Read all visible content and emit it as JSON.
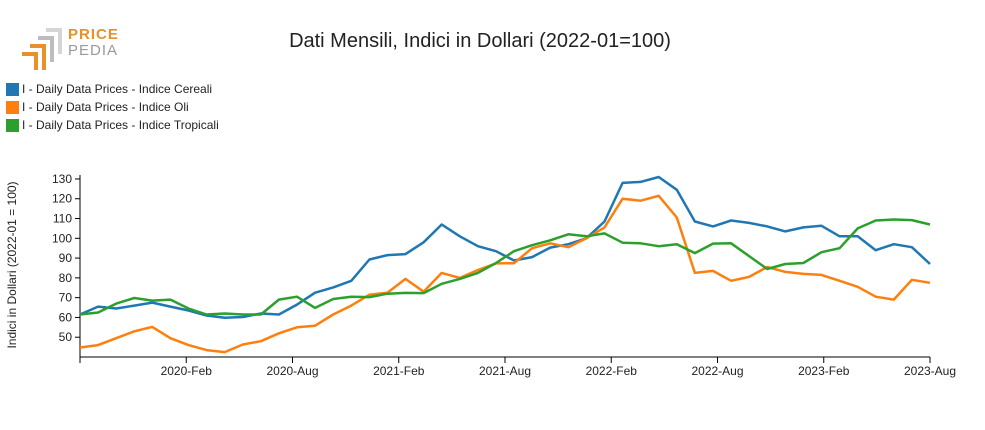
{
  "logo": {
    "line1": "PRICE",
    "line2": "PEDIA",
    "accent": "#e8912a",
    "gray": "#9a9a9a"
  },
  "chart_data": {
    "type": "line",
    "title": "Dati Mensili, Indici in Dollari (2022-01=100)",
    "xlabel": "",
    "ylabel": "Indici in Dollari (2022-01 = 100)",
    "ylim": [
      40,
      132
    ],
    "yticks": [
      50,
      60,
      70,
      80,
      90,
      100,
      110,
      120,
      130
    ],
    "x_start": "2019-08",
    "x_end": "2023-08",
    "xticks": [
      {
        "month": 6,
        "label": "2020-Feb"
      },
      {
        "month": 12,
        "label": "2020-Aug"
      },
      {
        "month": 18,
        "label": "2021-Feb"
      },
      {
        "month": 24,
        "label": "2021-Aug"
      },
      {
        "month": 30,
        "label": "2022-Feb"
      },
      {
        "month": 36,
        "label": "2022-Aug"
      },
      {
        "month": 42,
        "label": "2023-Feb"
      },
      {
        "month": 48,
        "label": "2023-Aug"
      }
    ],
    "legend_position": "top-left",
    "grid": false,
    "series": [
      {
        "name": "I - Daily Data Prices - Indice Cereali",
        "color": "#1f77b4",
        "values": [
          61.5,
          65.5,
          64.5,
          66,
          67.5,
          65.5,
          63.5,
          61,
          59.8,
          60.2,
          62,
          61.5,
          66.5,
          72.5,
          75.2,
          78.5,
          89.3,
          91.5,
          92,
          98,
          107,
          101,
          96,
          93.5,
          88.8,
          90.5,
          95.3,
          97,
          100,
          108.5,
          128,
          128.5,
          131,
          124.5,
          108.5,
          106,
          109,
          107.8,
          106,
          103.5,
          105.5,
          106.3,
          101,
          101,
          94,
          97,
          95.5,
          87
        ]
      },
      {
        "name": "I - Daily Data Prices - Indice Oli",
        "color": "#ff7f0e",
        "values": [
          44.8,
          46,
          49.5,
          53,
          55.2,
          49.5,
          46,
          43.5,
          42.5,
          46.3,
          48,
          52,
          55,
          55.8,
          61.5,
          66,
          71.5,
          72.5,
          79.5,
          73,
          82.5,
          80,
          84,
          87.3,
          87.4,
          95,
          97.5,
          95.5,
          100,
          105.5,
          120,
          119,
          121.5,
          110.5,
          82.5,
          83.5,
          78.5,
          80.5,
          85.5,
          83,
          82,
          81.5,
          78.5,
          75.5,
          70.5,
          69,
          79,
          77.5
        ]
      },
      {
        "name": "I - Daily Data Prices - Indice Tropicali",
        "color": "#2ca02c",
        "values": [
          61.5,
          62.5,
          67,
          69.8,
          68.5,
          69,
          64.5,
          61.5,
          62,
          61.5,
          61.5,
          69,
          70.5,
          64.8,
          69.3,
          70.5,
          70.3,
          72,
          72.4,
          72.3,
          77,
          79.5,
          82.5,
          87.5,
          93.5,
          96.5,
          99,
          102,
          101,
          102.5,
          97.8,
          97.5,
          96,
          97,
          92.5,
          97.3,
          97.5,
          91,
          84.5,
          87,
          87.5,
          93,
          95,
          105,
          109,
          109.5,
          109.2,
          107
        ]
      }
    ]
  }
}
